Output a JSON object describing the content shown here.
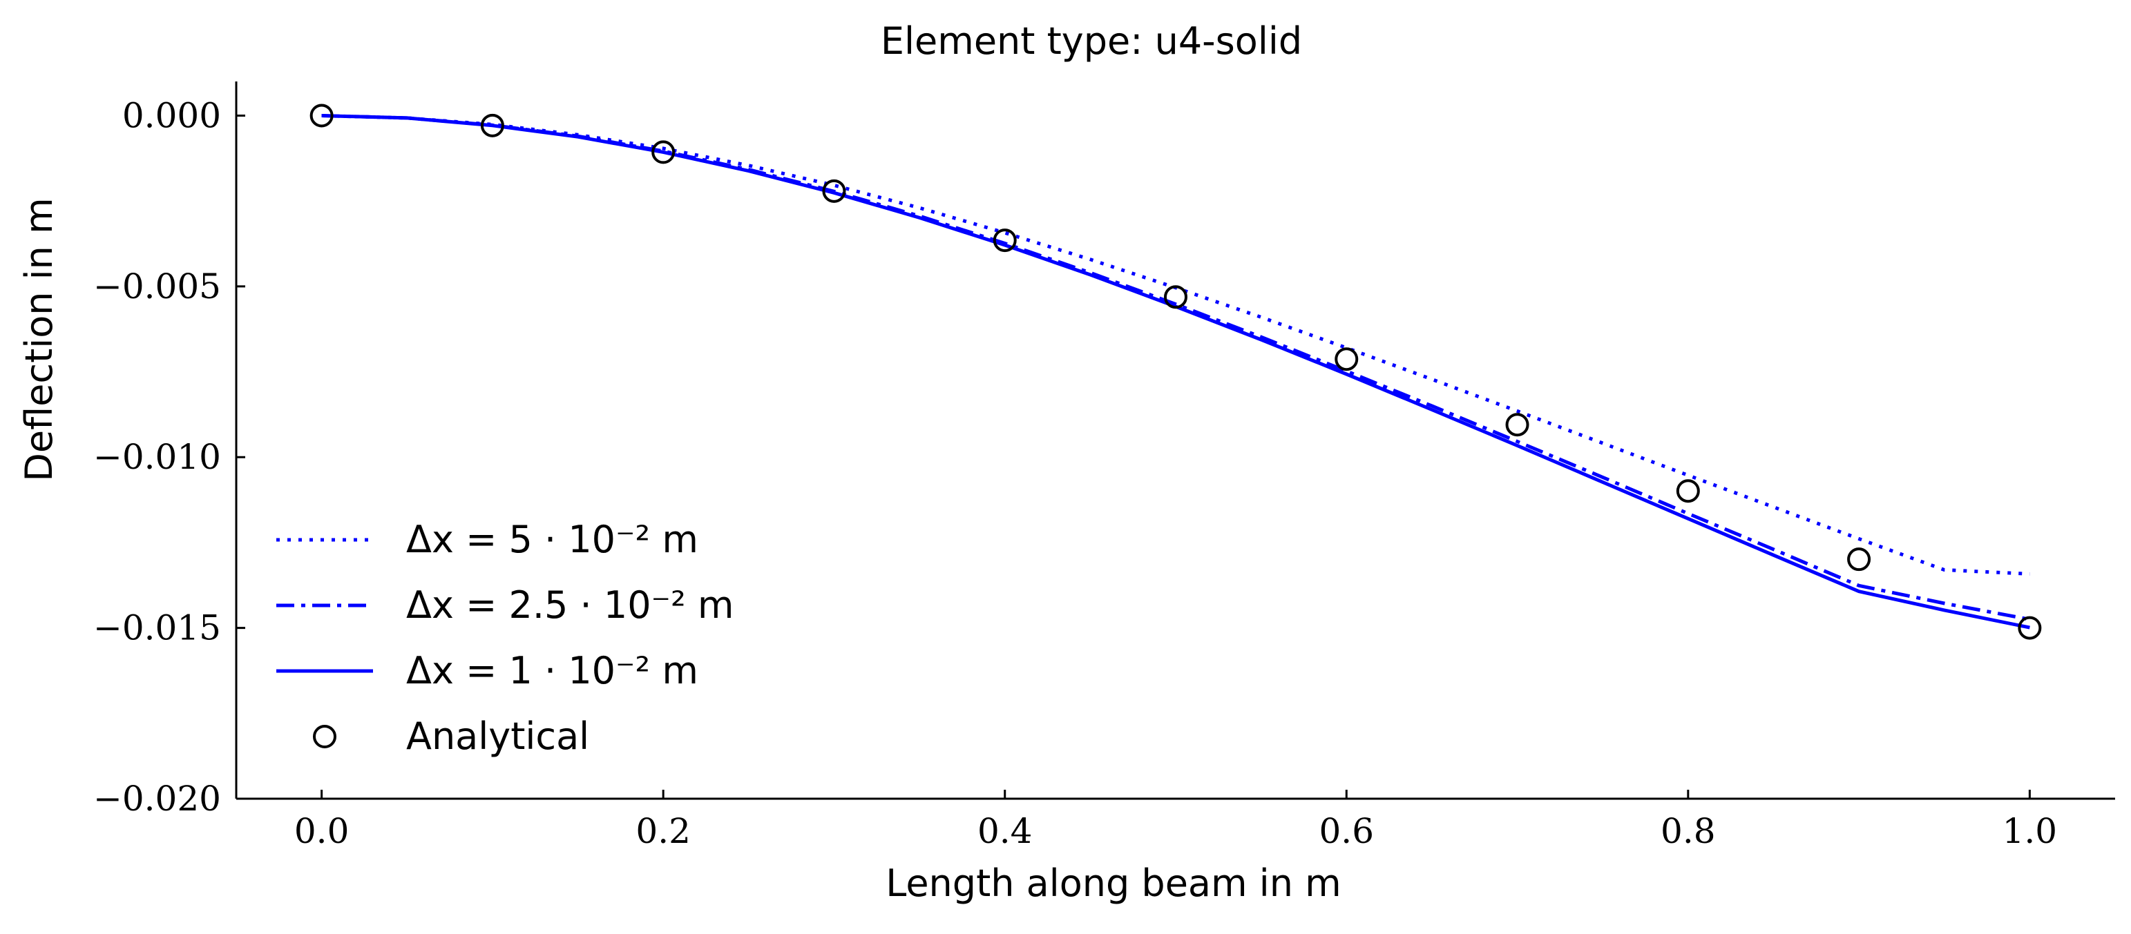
{
  "chart_data": {
    "type": "line",
    "title": "Element type: u4-solid",
    "xlabel": "Length along beam in m",
    "ylabel": "Deflection in m",
    "xlim": [
      -0.05,
      1.05
    ],
    "ylim": [
      -0.02,
      0.001
    ],
    "x_ticks": [
      0.0,
      0.2,
      0.4,
      0.6,
      0.8,
      1.0
    ],
    "x_tick_labels": [
      "0.0",
      "0.2",
      "0.4",
      "0.6",
      "0.8",
      "1.0"
    ],
    "y_ticks": [
      0.0,
      -0.005,
      -0.01,
      -0.015,
      -0.02
    ],
    "y_tick_labels": [
      "0.000",
      "−0.005",
      "−0.010",
      "−0.015",
      "−0.020"
    ],
    "grid": false,
    "legend_position": "lower-left",
    "series": [
      {
        "name": "Δx = 5 · 10⁻² m",
        "style": "dotted",
        "color": "#0000ff",
        "x": [
          0.0,
          0.05,
          0.1,
          0.15,
          0.2,
          0.25,
          0.3,
          0.35,
          0.4,
          0.45,
          0.5,
          0.55,
          0.6,
          0.65,
          0.7,
          0.75,
          0.8,
          0.85,
          0.9,
          0.95,
          1.0
        ],
        "y": [
          0.0,
          -7e-05,
          -0.00026,
          -0.00056,
          -0.00096,
          -0.00146,
          -0.00204,
          -0.0027,
          -0.00343,
          -0.00421,
          -0.00504,
          -0.0059,
          -0.0068,
          -0.00772,
          -0.00865,
          -0.00959,
          -0.01053,
          -0.01146,
          -0.01239,
          -0.0133,
          -0.01342
        ]
      },
      {
        "name": "Δx = 2.5 · 10⁻² m",
        "style": "dashdot",
        "color": "#0000ff",
        "x": [
          0.0,
          0.05,
          0.1,
          0.15,
          0.2,
          0.25,
          0.3,
          0.35,
          0.4,
          0.45,
          0.5,
          0.55,
          0.6,
          0.65,
          0.7,
          0.75,
          0.8,
          0.85,
          0.9,
          0.95,
          1.0
        ],
        "y": [
          0.0,
          -7e-05,
          -0.00028,
          -0.0006,
          -0.00104,
          -0.00158,
          -0.00222,
          -0.00294,
          -0.00374,
          -0.0046,
          -0.00552,
          -0.00648,
          -0.00748,
          -0.0085,
          -0.00954,
          -0.01059,
          -0.01165,
          -0.0127,
          -0.01376,
          -0.01428,
          -0.01475
        ]
      },
      {
        "name": "Δx = 1 · 10⁻² m",
        "style": "solid",
        "color": "#0000ff",
        "x": [
          0.0,
          0.05,
          0.1,
          0.15,
          0.2,
          0.25,
          0.3,
          0.35,
          0.4,
          0.45,
          0.5,
          0.55,
          0.6,
          0.65,
          0.7,
          0.75,
          0.8,
          0.85,
          0.9,
          0.95,
          1.0
        ],
        "y": [
          0.0,
          -7e-05,
          -0.00029,
          -0.00062,
          -0.00107,
          -0.00162,
          -0.00226,
          -0.00299,
          -0.00379,
          -0.00466,
          -0.00559,
          -0.00656,
          -0.00757,
          -0.00861,
          -0.00966,
          -0.01073,
          -0.0118,
          -0.01287,
          -0.01393,
          -0.01448,
          -0.01499
        ]
      },
      {
        "name": "Analytical",
        "style": "markers",
        "marker": "circle-open",
        "color": "#000000",
        "x": [
          0.0,
          0.1,
          0.2,
          0.3,
          0.4,
          0.5,
          0.6,
          0.7,
          0.8,
          0.9,
          1.0
        ],
        "y": [
          0.0,
          -0.00029,
          -0.00107,
          -0.00221,
          -0.00365,
          -0.00531,
          -0.00713,
          -0.00905,
          -0.01099,
          -0.01299,
          -0.015
        ]
      }
    ]
  }
}
